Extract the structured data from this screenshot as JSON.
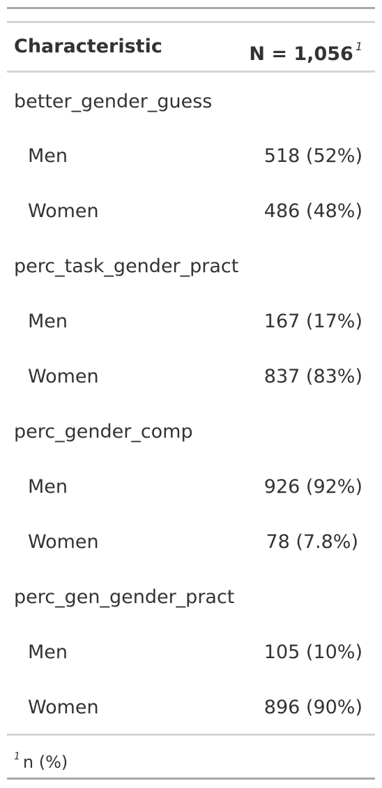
{
  "header": {
    "characteristic": "Characteristic",
    "n_label": "N = 1,056",
    "n_footnote_mark": "1"
  },
  "rows": [
    {
      "label": "better_gender_guess",
      "value": ""
    },
    {
      "label": "Men",
      "value": "518 (52%)"
    },
    {
      "label": "Women",
      "value": "486 (48%)"
    },
    {
      "label": "perc_task_gender_pract",
      "value": ""
    },
    {
      "label": "Men",
      "value": "167 (17%)"
    },
    {
      "label": "Women",
      "value": "837 (83%)"
    },
    {
      "label": "perc_gender_comp",
      "value": ""
    },
    {
      "label": "Men",
      "value": "926 (92%)"
    },
    {
      "label": "Women",
      "value": "78 (7.8%)"
    },
    {
      "label": "perc_gen_gender_pract",
      "value": ""
    },
    {
      "label": "Men",
      "value": "105 (10%)"
    },
    {
      "label": "Women",
      "value": "896 (90%)"
    }
  ],
  "footnote": {
    "mark": "1",
    "text": "n (%)"
  }
}
